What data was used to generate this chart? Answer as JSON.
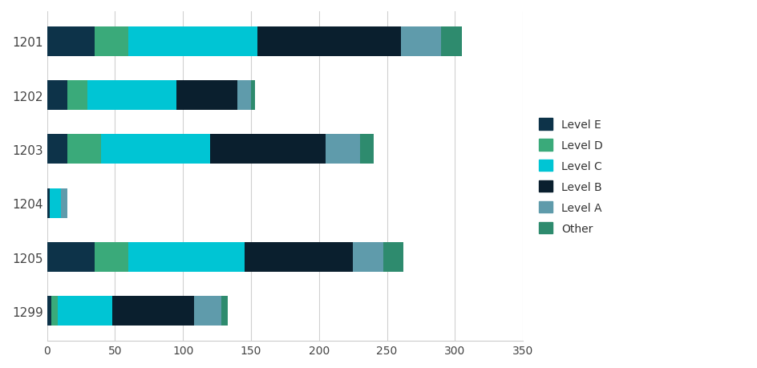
{
  "categories": [
    "1201",
    "1202",
    "1203",
    "1204",
    "1205",
    "1299"
  ],
  "levels": [
    "Level E",
    "Level D",
    "Level C",
    "Level B",
    "Level A",
    "Other"
  ],
  "colors_map": {
    "Level E": "#0d3349",
    "Level D": "#3aaa7a",
    "Level C": "#00c5d4",
    "Level B": "#0a1f2e",
    "Level A": "#5f9bab",
    "Other": "#2e8b6e"
  },
  "data": {
    "1201": [
      35,
      25,
      95,
      105,
      30,
      15
    ],
    "1202": [
      15,
      15,
      65,
      45,
      10,
      3
    ],
    "1203": [
      15,
      25,
      80,
      85,
      25,
      10
    ],
    "1204": [
      2,
      0,
      8,
      0,
      5,
      0
    ],
    "1205": [
      35,
      25,
      85,
      80,
      22,
      15
    ],
    "1299": [
      3,
      5,
      40,
      60,
      20,
      5
    ]
  },
  "xlim": [
    0,
    350
  ],
  "xticks": [
    0,
    50,
    100,
    150,
    200,
    250,
    300,
    350
  ],
  "background_color": "#ffffff",
  "grid_color": "#d0d0d0"
}
